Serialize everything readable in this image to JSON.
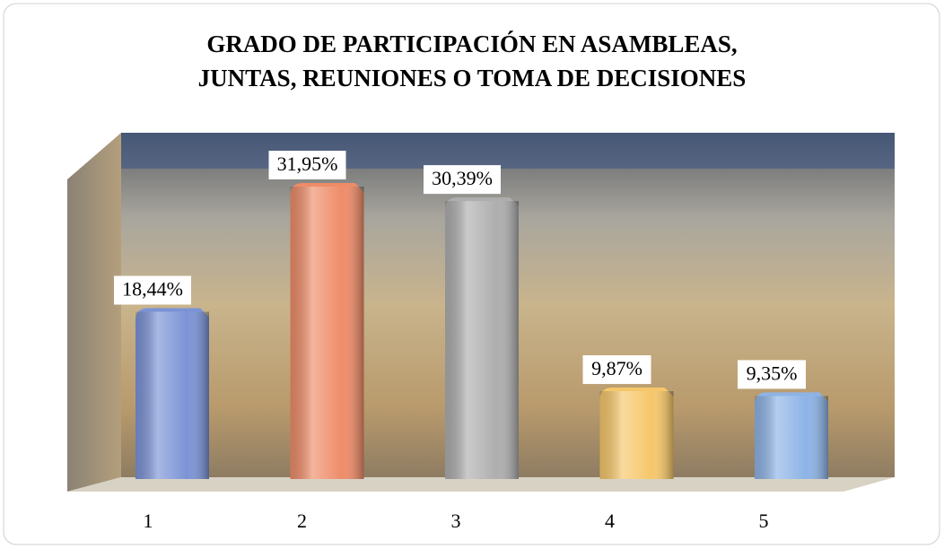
{
  "chart_data": {
    "type": "bar",
    "title": [
      "GRADO DE PARTICIPACIÓN EN ASAMBLEAS,",
      "JUNTAS, REUNIONES O TOMA DE DECISIONES"
    ],
    "categories": [
      "1",
      "2",
      "3",
      "4",
      "5"
    ],
    "values": [
      18.44,
      31.95,
      30.39,
      9.87,
      9.35
    ],
    "value_labels": [
      "18,44%",
      "31,95%",
      "30,39%",
      "9,87%",
      "9,35%"
    ],
    "colors": [
      "#7b93d6",
      "#ee8c68",
      "#aeaeae",
      "#f6c76a",
      "#8db3e6"
    ]
  }
}
